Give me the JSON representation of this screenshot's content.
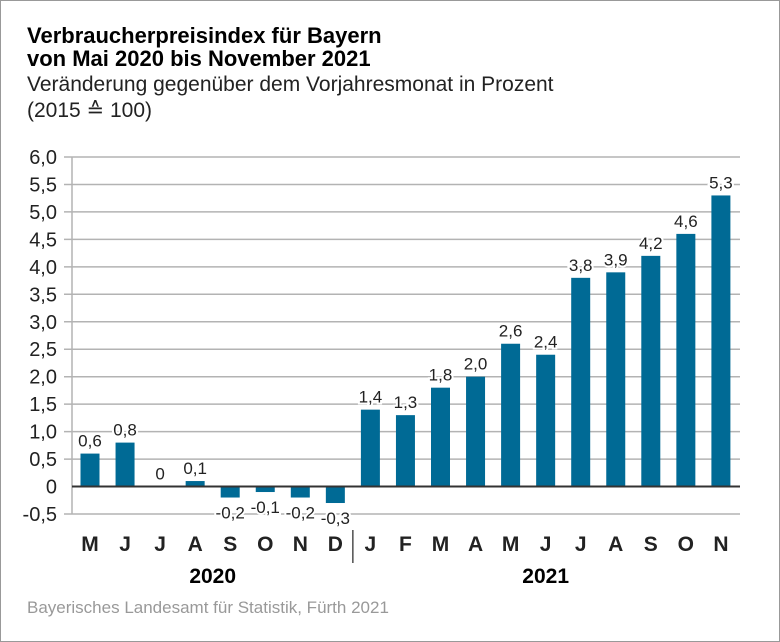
{
  "chart_data": {
    "type": "bar",
    "title": "Verbraucherpreisindex für Bayern",
    "title_line2": "von Mai 2020 bis November 2021",
    "subtitle": "Veränderung gegenüber dem Vorjahresmonat in Prozent",
    "subtitle_line2": "(2015 ≙ 100)",
    "categories": [
      "M",
      "J",
      "J",
      "A",
      "S",
      "O",
      "N",
      "D",
      "J",
      "F",
      "M",
      "A",
      "M",
      "J",
      "J",
      "A",
      "S",
      "O",
      "N"
    ],
    "values": [
      0.6,
      0.8,
      0,
      0.1,
      -0.2,
      -0.1,
      -0.2,
      -0.3,
      1.4,
      1.3,
      1.8,
      2.0,
      2.6,
      2.4,
      3.8,
      3.9,
      4.2,
      4.6,
      5.3
    ],
    "value_labels": [
      "0,6",
      "0,8",
      "0",
      "0,1",
      "-0,2",
      "-0,1",
      "-0,2",
      "-0,3",
      "1,4",
      "1,3",
      "1,8",
      "2,0",
      "2,6",
      "2,4",
      "3,8",
      "3,9",
      "4,2",
      "4,6",
      "5,3"
    ],
    "year_groups": [
      {
        "label": "2020",
        "count": 8
      },
      {
        "label": "2021",
        "count": 11
      }
    ],
    "ylim": [
      -0.5,
      6.0
    ],
    "yticks": [
      -0.5,
      0,
      0.5,
      1.0,
      1.5,
      2.0,
      2.5,
      3.0,
      3.5,
      4.0,
      4.5,
      5.0,
      5.5,
      6.0
    ],
    "ytick_labels": [
      "-0,5",
      "0",
      "0,5",
      "1,0",
      "1,5",
      "2,0",
      "2,5",
      "3,0",
      "3,5",
      "4,0",
      "4,5",
      "5,0",
      "5,5",
      "6,0"
    ],
    "xlabel": "",
    "ylabel": "",
    "grid": true,
    "bar_color": "#006a95",
    "source": "Bayerisches Landesamt für Statistik, Fürth 2021"
  }
}
